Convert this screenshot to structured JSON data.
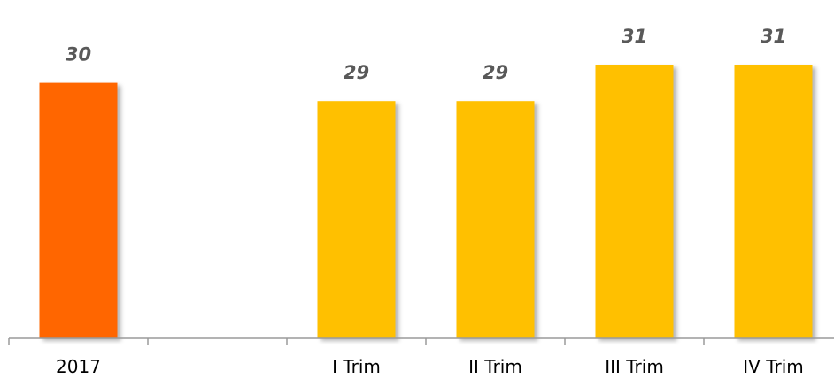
{
  "chart_data": {
    "type": "bar",
    "categories": [
      "2017",
      "",
      "I Trim",
      "II Trim",
      "III Trim",
      "IV Trim"
    ],
    "values": [
      30,
      null,
      29,
      29,
      31,
      31
    ],
    "data_labels": [
      "30",
      "",
      "29",
      "29",
      "31",
      "31"
    ],
    "bar_colors": [
      "#ff6600",
      null,
      "#ffc000",
      "#ffc000",
      "#ffc000",
      "#ffc000"
    ],
    "title": "",
    "xlabel": "",
    "ylabel": "",
    "grid": false,
    "legend": "none"
  }
}
